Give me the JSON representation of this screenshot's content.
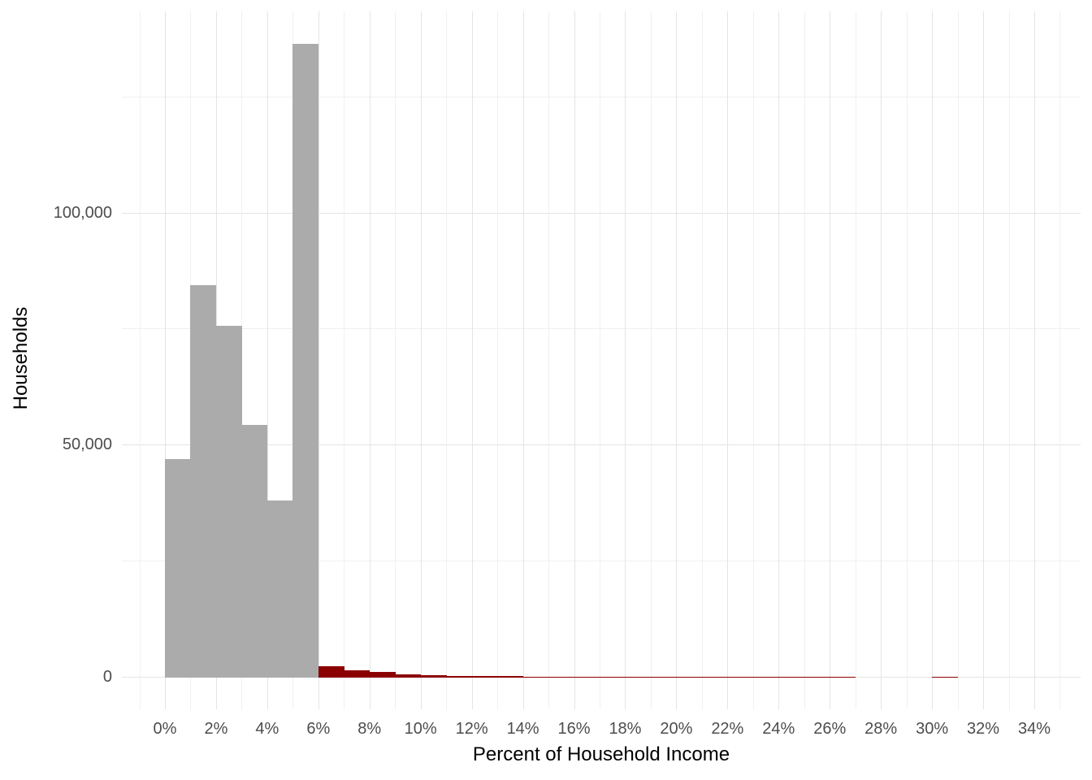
{
  "chart_data": {
    "type": "bar",
    "subtype": "histogram",
    "title": "",
    "xlabel": "Percent of Household Income",
    "ylabel": "Households",
    "background_color": "#FFFFFF",
    "grid": {
      "shown": true,
      "major_color": "#E4E4E4",
      "minor_color": "#F0F0F0",
      "x_minor_step_pct": 1,
      "y_minor_step": 25000
    },
    "x_axis": {
      "tick_values": [
        0,
        2,
        4,
        6,
        8,
        10,
        12,
        14,
        16,
        18,
        20,
        22,
        24,
        26,
        28,
        30,
        32,
        34
      ],
      "tick_labels": [
        "0%",
        "2%",
        "4%",
        "6%",
        "8%",
        "10%",
        "12%",
        "14%",
        "16%",
        "18%",
        "20%",
        "22%",
        "24%",
        "26%",
        "28%",
        "30%",
        "32%",
        "34%"
      ],
      "minor_values": [
        -1,
        1,
        3,
        5,
        7,
        9,
        11,
        13,
        15,
        17,
        19,
        21,
        23,
        25,
        27,
        29,
        31,
        33,
        35
      ],
      "range_pct": [
        -1.7,
        35.8
      ]
    },
    "y_axis": {
      "tick_values": [
        0,
        50000,
        100000
      ],
      "tick_labels": [
        "0",
        "50,000",
        "100,000"
      ],
      "minor_values": [
        25000,
        75000,
        125000
      ],
      "range": [
        -7200,
        143400
      ]
    },
    "bin_width_pct": 1,
    "series": [
      {
        "name": "gray-bars-0-to-6-percent",
        "color": "#ABABAB",
        "bins": [
          {
            "x0": 0,
            "count": 47000
          },
          {
            "x0": 1,
            "count": 84500
          },
          {
            "x0": 2,
            "count": 75800
          },
          {
            "x0": 3,
            "count": 54500
          },
          {
            "x0": 4,
            "count": 38200
          },
          {
            "x0": 5,
            "count": 136500
          }
        ]
      },
      {
        "name": "dark-red-bars-6-percent-and-above",
        "color": "#8B0000",
        "bins": [
          {
            "x0": 6,
            "count": 2400
          },
          {
            "x0": 7,
            "count": 1600
          },
          {
            "x0": 8,
            "count": 1250
          },
          {
            "x0": 9,
            "count": 650
          },
          {
            "x0": 10,
            "count": 480
          },
          {
            "x0": 11,
            "count": 360
          },
          {
            "x0": 12,
            "count": 330
          },
          {
            "x0": 13,
            "count": 300
          },
          {
            "x0": 14,
            "count": 230
          },
          {
            "x0": 15,
            "count": 210
          },
          {
            "x0": 16,
            "count": 190
          },
          {
            "x0": 17,
            "count": 110
          },
          {
            "x0": 18,
            "count": 100
          },
          {
            "x0": 19,
            "count": 90
          },
          {
            "x0": 20,
            "count": 80
          },
          {
            "x0": 21,
            "count": 70
          },
          {
            "x0": 22,
            "count": 65
          },
          {
            "x0": 23,
            "count": 60
          },
          {
            "x0": 24,
            "count": 55
          },
          {
            "x0": 25,
            "count": 50
          },
          {
            "x0": 26,
            "count": 45
          },
          {
            "x0": 30,
            "count": 40
          }
        ]
      }
    ]
  }
}
